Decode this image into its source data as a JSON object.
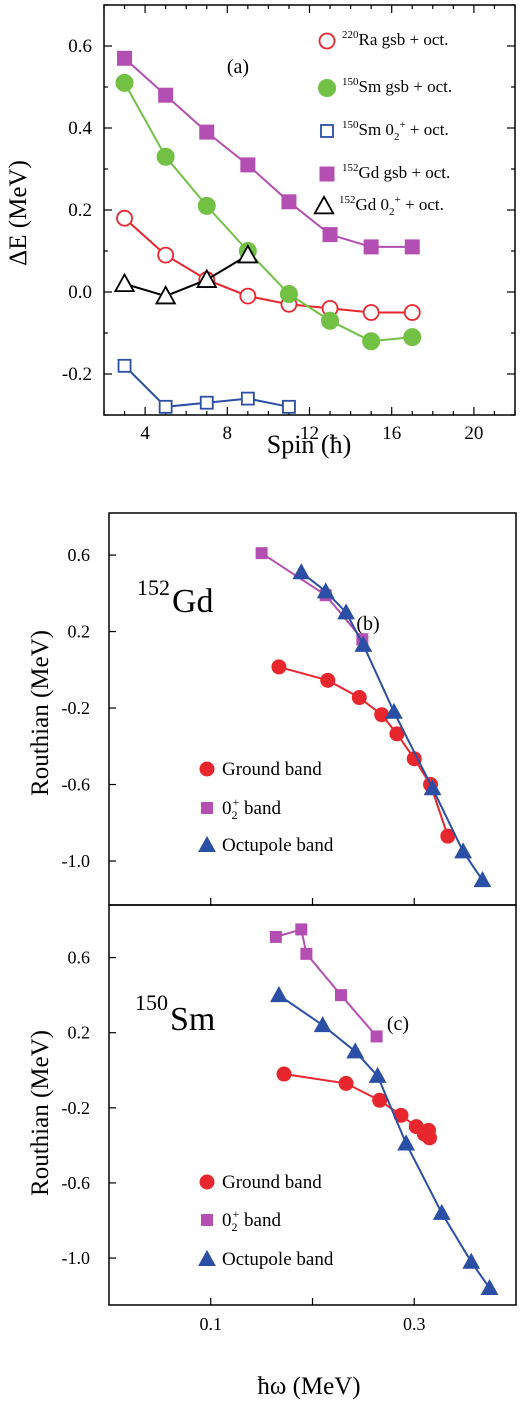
{
  "colors": {
    "red": "#e8262d",
    "green": "#72c044",
    "blue": "#2a4fa5",
    "magenta": "#b34fb3",
    "black": "#000000"
  },
  "chart_data": [
    {
      "id": "a",
      "type": "line",
      "panel_label": "(a)",
      "xlabel": "Spin (ħ)",
      "ylabel": "ΔE (MeV)",
      "xlim": [
        2,
        22
      ],
      "ylim": [
        -0.3,
        0.7
      ],
      "xticks": [
        4,
        8,
        12,
        16,
        20
      ],
      "yticks": [
        0.6,
        0.4,
        0.2,
        0.0,
        -0.2
      ],
      "ytick_labels": [
        "0.6",
        "0.4",
        "0.2",
        "0.0",
        "-0.2"
      ],
      "legend_position": "top-right",
      "series": [
        {
          "key": "ra220",
          "name": "²²⁰Ra gsb + oct.",
          "color": "#e8262d",
          "marker": "circle-open",
          "x": [
            3,
            5,
            7,
            9,
            11,
            13,
            15,
            17
          ],
          "y": [
            0.18,
            0.09,
            0.03,
            -0.01,
            -0.03,
            -0.04,
            -0.05,
            -0.05
          ]
        },
        {
          "key": "sm150gsb",
          "name": "¹⁵⁰Sm gsb + oct.",
          "color": "#72c044",
          "marker": "circle-filled",
          "x": [
            3,
            5,
            7,
            9,
            11,
            13,
            15,
            17
          ],
          "y": [
            0.51,
            0.33,
            0.21,
            0.1,
            -0.005,
            -0.07,
            -0.12,
            -0.11
          ]
        },
        {
          "key": "sm150zero",
          "name": "¹⁵⁰Sm 0₂⁺ + oct.",
          "color": "#2a4fa5",
          "marker": "square-open",
          "x": [
            3,
            5,
            7,
            9,
            11
          ],
          "y": [
            -0.18,
            -0.28,
            -0.27,
            -0.26,
            -0.28
          ]
        },
        {
          "key": "gd152gsb",
          "name": "¹⁵²Gd gsb + oct.",
          "color": "#b34fb3",
          "marker": "square-filled",
          "x": [
            3,
            5,
            7,
            9,
            11,
            13,
            15,
            17
          ],
          "y": [
            0.57,
            0.48,
            0.39,
            0.31,
            0.22,
            0.14,
            0.11,
            0.11
          ]
        },
        {
          "key": "gd152zero",
          "name": "¹⁵²Gd 0₂⁺ + oct.",
          "color": "#000000",
          "marker": "triangle-open",
          "x": [
            3,
            5,
            7,
            9
          ],
          "y": [
            0.02,
            -0.01,
            0.03,
            0.09
          ]
        }
      ]
    },
    {
      "id": "b",
      "type": "line",
      "panel_label": "(b)",
      "nucleus_label": "152Gd",
      "nucleus_mass": "152",
      "nucleus_symbol": "Gd",
      "ylabel": "Routhian (MeV)",
      "xlim": [
        0.0,
        0.4
      ],
      "ylim": [
        -1.23,
        0.82
      ],
      "yticks": [
        0.6,
        0.2,
        -0.2,
        -0.6,
        -1.0
      ],
      "ytick_labels": [
        "0.6",
        "0.2",
        "-0.2",
        "-0.6",
        "-1.0"
      ],
      "legend_position": "lower-left",
      "series": [
        {
          "key": "ground",
          "name": "Ground band",
          "color": "#e8262d",
          "marker": "circle-filled",
          "x": [
            0.167,
            0.215,
            0.246,
            0.268,
            0.283,
            0.3,
            0.316,
            0.333
          ],
          "y": [
            0.015,
            -0.055,
            -0.145,
            -0.235,
            -0.335,
            -0.465,
            -0.6,
            -0.87
          ]
        },
        {
          "key": "zero2",
          "name": "0₂⁺ band",
          "color": "#b34fb3",
          "marker": "square-filled",
          "x": [
            0.15,
            0.213,
            0.249
          ],
          "y": [
            0.61,
            0.39,
            0.16
          ]
        },
        {
          "key": "octupole",
          "name": "Octupole band",
          "color": "#2a4fa5",
          "marker": "triangle-filled",
          "x": [
            0.189,
            0.213,
            0.233,
            0.25,
            0.28,
            0.318,
            0.348,
            0.367
          ],
          "y": [
            0.51,
            0.41,
            0.3,
            0.13,
            -0.22,
            -0.62,
            -0.95,
            -1.1
          ]
        }
      ]
    },
    {
      "id": "c",
      "type": "line",
      "panel_label": "(c)",
      "nucleus_label": "150Sm",
      "nucleus_mass": "150",
      "nucleus_symbol": "Sm",
      "xlabel": "ħω (MeV)",
      "ylabel": "Routhian (MeV)",
      "xlim": [
        0.0,
        0.4
      ],
      "ylim": [
        -1.25,
        0.88
      ],
      "xticks": [
        0.1,
        0.3
      ],
      "xtick_labels": [
        "0.1",
        "0.3"
      ],
      "yticks": [
        0.6,
        0.2,
        -0.2,
        -0.6,
        -1.0
      ],
      "ytick_labels": [
        "0.6",
        "0.2",
        "-0.2",
        "-0.6",
        "-1.0"
      ],
      "legend_position": "lower-left",
      "series": [
        {
          "key": "ground",
          "name": "Ground band",
          "color": "#e8262d",
          "marker": "circle-filled",
          "x": [
            0.172,
            0.233,
            0.266,
            0.287,
            0.302,
            0.31,
            0.315,
            0.314
          ],
          "y": [
            -0.02,
            -0.07,
            -0.16,
            -0.24,
            -0.3,
            -0.34,
            -0.36,
            -0.32
          ]
        },
        {
          "key": "zero2",
          "name": "0₂⁺ band",
          "color": "#b34fb3",
          "marker": "square-filled",
          "x": [
            0.164,
            0.189,
            0.194,
            0.228,
            0.263
          ],
          "y": [
            0.71,
            0.75,
            0.62,
            0.4,
            0.18
          ]
        },
        {
          "key": "octupole",
          "name": "Octupole band",
          "color": "#2a4fa5",
          "marker": "triangle-filled",
          "x": [
            0.167,
            0.21,
            0.242,
            0.264,
            0.292,
            0.327,
            0.356,
            0.374
          ],
          "y": [
            0.4,
            0.24,
            0.1,
            -0.03,
            -0.39,
            -0.76,
            -1.02,
            -1.16
          ]
        }
      ]
    }
  ]
}
